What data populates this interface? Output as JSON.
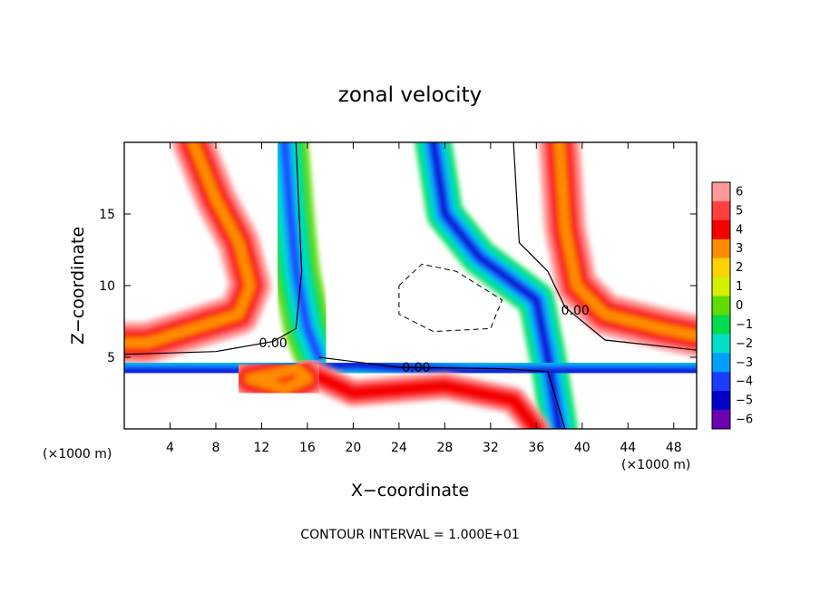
{
  "chart_data": {
    "type": "heatmap",
    "title": "zonal velocity",
    "xlabel": "X−coordinate",
    "ylabel": "Z−coordinate",
    "x_unit": "(×1000 m)",
    "x_unit_right": "(×1000 m)",
    "note": "CONTOUR INTERVAL = 1.000E+01",
    "xlim": [
      0,
      50
    ],
    "ylim": [
      0,
      20
    ],
    "x_ticks": [
      4,
      8,
      12,
      16,
      20,
      24,
      28,
      32,
      36,
      40,
      44,
      48
    ],
    "y_ticks": [
      5,
      10,
      15
    ],
    "colorbar": {
      "levels": [
        6,
        5,
        4,
        3,
        2,
        1,
        0,
        -1,
        -2,
        -3,
        -4,
        -5,
        -6
      ],
      "labels": [
        "6",
        "5",
        "4",
        "3",
        "2",
        "1",
        "0",
        "−1",
        "−2",
        "−3",
        "−4",
        "−5",
        "−6"
      ],
      "colors": [
        "#ff9999",
        "#ff4040",
        "#f50000",
        "#ff8c00",
        "#ffd200",
        "#d2f000",
        "#60dc00",
        "#00dc50",
        "#00e0c8",
        "#00a0ff",
        "#1c3cff",
        "#0000c8",
        "#6a00b0"
      ]
    },
    "contour_labels": [
      {
        "text": "0.00",
        "x": 13.0,
        "y": 6.0
      },
      {
        "text": "0.00",
        "x": 25.5,
        "y": 4.3
      },
      {
        "text": "0.00",
        "x": 39.4,
        "y": 8.3
      }
    ],
    "features": [
      {
        "name": "red band upper left",
        "value": 5,
        "path": [
          [
            6,
            20
          ],
          [
            8,
            16
          ],
          [
            10,
            13
          ],
          [
            11,
            10
          ],
          [
            10,
            8
          ],
          [
            6,
            7
          ],
          [
            2,
            6
          ],
          [
            0,
            6
          ]
        ]
      },
      {
        "name": "blue–green column",
        "value": -3,
        "path": [
          [
            14,
            20
          ],
          [
            14.5,
            15
          ],
          [
            15,
            11
          ],
          [
            16,
            7
          ],
          [
            17,
            5
          ]
        ]
      },
      {
        "name": "blue arm",
        "value": -4,
        "path": [
          [
            27,
            20
          ],
          [
            28,
            15
          ],
          [
            31,
            12
          ],
          [
            36,
            9
          ],
          [
            37,
            5
          ],
          [
            38,
            0
          ]
        ]
      },
      {
        "name": "red band upper right",
        "value": 5,
        "path": [
          [
            38,
            20
          ],
          [
            38.5,
            14
          ],
          [
            39.5,
            10
          ],
          [
            42,
            8
          ],
          [
            47,
            7
          ],
          [
            50,
            6.5
          ]
        ]
      },
      {
        "name": "lower blue band",
        "value": -4,
        "path": [
          [
            0,
            4
          ],
          [
            10,
            4
          ],
          [
            20,
            4.5
          ],
          [
            30,
            4
          ],
          [
            40,
            4
          ],
          [
            50,
            4
          ]
        ]
      },
      {
        "name": "lower red band",
        "value": 4,
        "path": [
          [
            16,
            4
          ],
          [
            20,
            2.5
          ],
          [
            28,
            3
          ],
          [
            34,
            2
          ],
          [
            36,
            0
          ]
        ]
      },
      {
        "name": "red eddy",
        "value": 5,
        "path": [
          [
            11,
            3.5
          ],
          [
            13,
            3.8
          ],
          [
            15,
            4.2
          ],
          [
            16,
            3.5
          ],
          [
            14,
            2.8
          ],
          [
            11,
            3.5
          ]
        ]
      },
      {
        "name": "dashed negative contour",
        "value": -10,
        "path": [
          [
            24,
            10
          ],
          [
            26,
            11.5
          ],
          [
            29,
            11
          ],
          [
            33,
            9
          ],
          [
            32,
            7
          ],
          [
            27,
            6.8
          ],
          [
            24,
            8
          ],
          [
            24,
            10
          ]
        ]
      }
    ]
  }
}
